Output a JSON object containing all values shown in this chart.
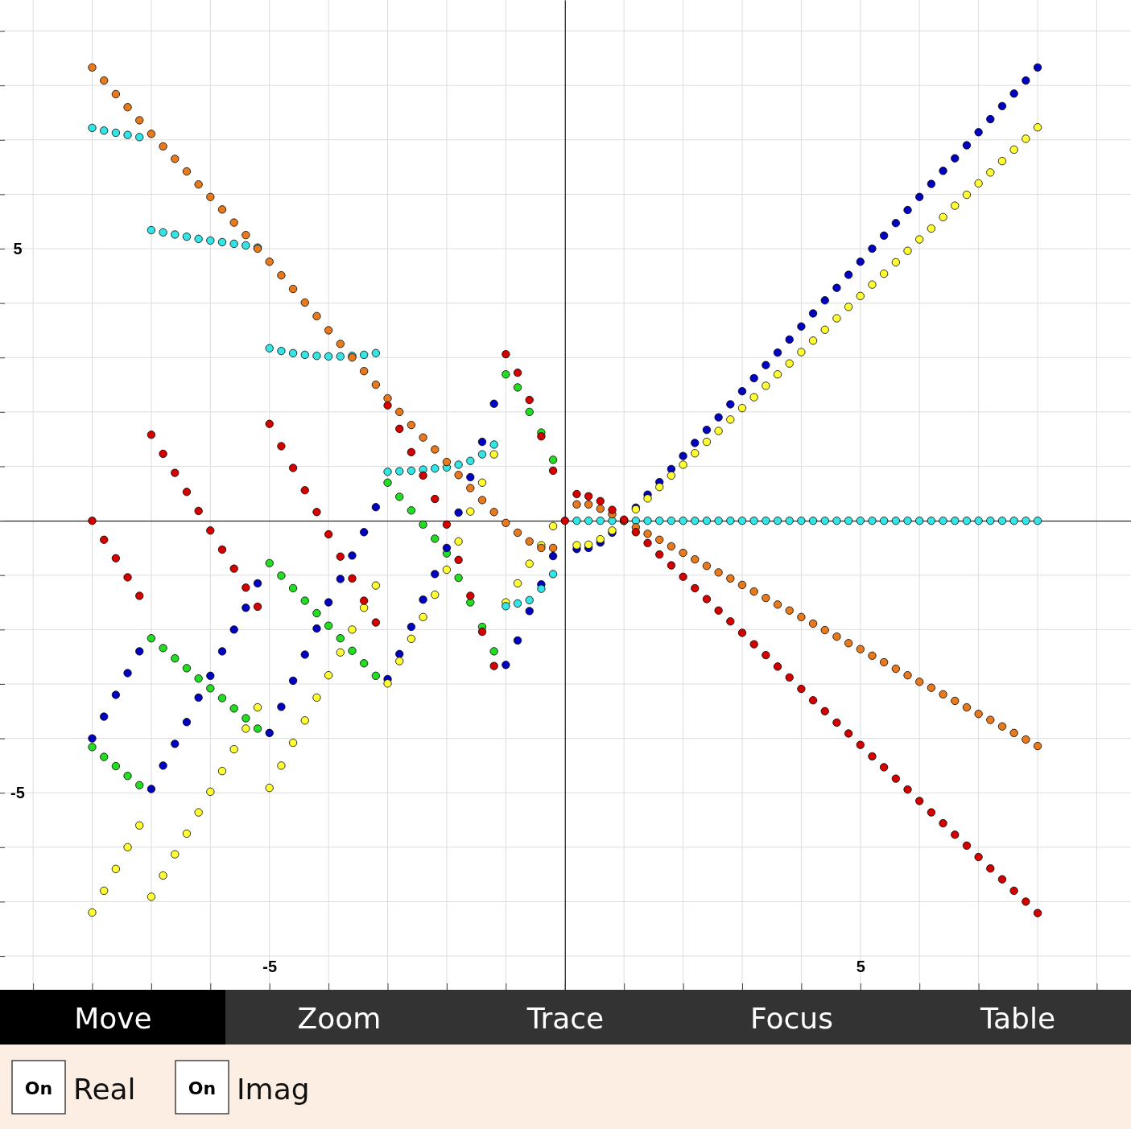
{
  "chart_data": {
    "type": "scatter",
    "marker": "circle",
    "grid": true,
    "xlim": [
      -9.56,
      9.58
    ],
    "ylim": [
      -8.62,
      9.57
    ],
    "xticks": [
      {
        "value": -9,
        "label": null
      },
      {
        "value": -8,
        "label": null
      },
      {
        "value": -7,
        "label": null
      },
      {
        "value": -6,
        "label": null
      },
      {
        "value": -5,
        "label": "-5"
      },
      {
        "value": -4,
        "label": null
      },
      {
        "value": -3,
        "label": null
      },
      {
        "value": -2,
        "label": null
      },
      {
        "value": -1,
        "label": null
      },
      {
        "value": 0,
        "label": null
      },
      {
        "value": 1,
        "label": null
      },
      {
        "value": 2,
        "label": null
      },
      {
        "value": 3,
        "label": null
      },
      {
        "value": 4,
        "label": null
      },
      {
        "value": 5,
        "label": "5"
      },
      {
        "value": 6,
        "label": null
      },
      {
        "value": 7,
        "label": null
      },
      {
        "value": 8,
        "label": null
      },
      {
        "value": 9,
        "label": null
      }
    ],
    "yticks": [
      {
        "value": -8,
        "label": null
      },
      {
        "value": -7,
        "label": null
      },
      {
        "value": -6,
        "label": null
      },
      {
        "value": -5,
        "label": "-5"
      },
      {
        "value": -4,
        "label": null
      },
      {
        "value": -3,
        "label": null
      },
      {
        "value": -2,
        "label": null
      },
      {
        "value": -1,
        "label": null
      },
      {
        "value": 0,
        "label": null
      },
      {
        "value": 1,
        "label": null
      },
      {
        "value": 2,
        "label": null
      },
      {
        "value": 3,
        "label": null
      },
      {
        "value": 4,
        "label": null
      },
      {
        "value": 5,
        "label": "5"
      },
      {
        "value": 6,
        "label": null
      },
      {
        "value": 7,
        "label": null
      },
      {
        "value": 8,
        "label": null
      },
      {
        "value": 9,
        "label": null
      }
    ],
    "x": [
      -8,
      -7.8,
      -7.6,
      -7.4,
      -7.2,
      -7,
      -6.8,
      -6.6,
      -6.4,
      -6.2,
      -6,
      -5.8,
      -5.6,
      -5.4,
      -5.2,
      -5,
      -4.8,
      -4.6,
      -4.4,
      -4.2,
      -4,
      -3.8,
      -3.6,
      -3.4,
      -3.2,
      -3,
      -2.8,
      -2.6,
      -2.4,
      -2.2,
      -2,
      -1.8,
      -1.6,
      -1.4,
      -1.2,
      -1,
      -0.8,
      -0.6,
      -0.4,
      -0.2,
      0,
      0.2,
      0.4,
      0.6,
      0.8,
      1,
      1.2,
      1.4,
      1.6,
      1.8,
      2,
      2.2,
      2.4,
      2.6,
      2.8,
      3,
      3.2,
      3.4,
      3.6,
      3.8,
      4,
      4.2,
      4.4,
      4.6,
      4.8,
      5,
      5.2,
      5.4,
      5.6,
      5.8,
      6,
      6.2,
      6.4,
      6.6,
      6.8,
      7,
      7.2,
      7.4,
      7.6,
      7.8,
      8
    ],
    "series": [
      {
        "color": "#22dd22",
        "values": [
          -4.16,
          -4.34,
          -4.51,
          -4.69,
          -4.86,
          -2.16,
          -2.34,
          -2.53,
          -2.71,
          -2.9,
          -3.08,
          -3.26,
          -3.45,
          -3.63,
          -3.82,
          -0.78,
          -1.01,
          -1.24,
          -1.47,
          -1.7,
          -1.93,
          -2.16,
          -2.39,
          -2.62,
          -2.85,
          0.7,
          0.44,
          0.19,
          -0.07,
          -0.33,
          -0.6,
          -1.05,
          -1.5,
          -1.95,
          -2.4,
          2.69,
          2.45,
          2.0,
          1.62,
          1.12,
          null,
          null,
          null,
          null,
          null,
          null,
          null,
          null,
          null,
          null,
          null,
          null,
          null,
          null,
          null,
          null,
          null,
          null,
          null,
          null,
          null,
          null,
          null,
          null,
          null,
          null,
          null,
          null,
          null,
          null,
          null,
          null,
          null,
          null,
          null,
          null,
          null,
          null,
          null,
          null,
          null
        ]
      },
      {
        "color": "#0000c0",
        "values": [
          -4.0,
          -3.6,
          -3.2,
          -2.8,
          -2.4,
          -4.93,
          -4.5,
          -4.1,
          -3.7,
          -3.25,
          -2.85,
          -2.4,
          -2.0,
          -1.6,
          -1.15,
          -3.9,
          -3.42,
          -2.94,
          -2.46,
          -1.98,
          -1.5,
          -1.07,
          -0.64,
          -0.21,
          0.25,
          -2.91,
          -2.45,
          -1.95,
          -1.45,
          -0.98,
          -0.5,
          0.15,
          0.8,
          1.45,
          2.15,
          -2.65,
          -2.2,
          -1.66,
          -1.17,
          -0.65,
          null,
          -0.52,
          -0.5,
          -0.4,
          -0.22,
          0,
          0.24,
          0.48,
          0.71,
          0.95,
          1.19,
          1.43,
          1.67,
          1.9,
          2.14,
          2.38,
          2.62,
          2.86,
          3.09,
          3.33,
          3.57,
          3.81,
          4.05,
          4.28,
          4.52,
          4.76,
          5.0,
          5.24,
          5.47,
          5.71,
          5.95,
          6.19,
          6.43,
          6.66,
          6.9,
          7.14,
          7.38,
          7.62,
          7.85,
          8.09,
          8.33
        ]
      },
      {
        "color": "#ffff33",
        "values": [
          -7.2,
          -6.8,
          -6.4,
          -6.0,
          -5.6,
          -6.91,
          -6.52,
          -6.13,
          -5.75,
          -5.36,
          -4.98,
          -4.6,
          -4.2,
          -3.82,
          -3.43,
          -4.91,
          -4.5,
          -4.08,
          -3.67,
          -3.25,
          -2.84,
          -2.42,
          -2.0,
          -1.6,
          -1.19,
          -2.99,
          -2.58,
          -2.17,
          -1.77,
          -1.36,
          -0.9,
          -0.38,
          0.17,
          0.7,
          1.22,
          -1.5,
          -1.15,
          -0.79,
          -0.45,
          -0.1,
          null,
          -0.45,
          -0.44,
          -0.34,
          -0.18,
          0,
          0.21,
          0.41,
          0.62,
          0.83,
          1.03,
          1.24,
          1.45,
          1.65,
          1.86,
          2.07,
          2.27,
          2.48,
          2.69,
          2.89,
          3.1,
          3.31,
          3.51,
          3.72,
          3.93,
          4.13,
          4.34,
          4.54,
          4.75,
          4.96,
          5.17,
          5.37,
          5.58,
          5.79,
          5.99,
          6.2,
          6.4,
          6.61,
          6.82,
          7.02,
          7.23
        ]
      },
      {
        "color": "#33e5e5",
        "values": [
          7.22,
          7.17,
          7.13,
          7.09,
          7.05,
          5.34,
          5.3,
          5.26,
          5.22,
          5.18,
          5.15,
          5.12,
          5.09,
          5.06,
          5.02,
          3.17,
          3.12,
          3.08,
          3.05,
          3.03,
          3.02,
          3.02,
          3.03,
          3.05,
          3.08,
          0.9,
          0.91,
          0.92,
          0.94,
          0.96,
          0.98,
          1.03,
          1.1,
          1.22,
          1.4,
          -1.57,
          -1.52,
          -1.46,
          -1.25,
          -0.98,
          null,
          0,
          0,
          0,
          0,
          0,
          0,
          0,
          0,
          0,
          0,
          0,
          0,
          0,
          0,
          0,
          0,
          0,
          0,
          0,
          0,
          0,
          0,
          0,
          0,
          0,
          0,
          0,
          0,
          0,
          0,
          0,
          0,
          0,
          0,
          0,
          0,
          0,
          0,
          0,
          0
        ]
      },
      {
        "color": "#e87a1e",
        "values": [
          8.33,
          8.09,
          7.84,
          7.6,
          7.36,
          7.11,
          6.88,
          6.65,
          6.42,
          6.18,
          5.95,
          5.72,
          5.48,
          5.25,
          5.0,
          4.76,
          4.51,
          4.26,
          4.01,
          3.76,
          3.5,
          3.25,
          3.0,
          2.75,
          2.5,
          2.25,
          2.0,
          1.76,
          1.53,
          1.31,
          1.08,
          0.84,
          0.6,
          0.38,
          0.16,
          -0.04,
          -0.22,
          -0.38,
          -0.5,
          -0.5,
          null,
          0.3,
          0.3,
          0.22,
          0.12,
          0,
          -0.12,
          -0.24,
          -0.35,
          -0.47,
          -0.59,
          -0.71,
          -0.83,
          -0.95,
          -1.06,
          -1.18,
          -1.3,
          -1.42,
          -1.54,
          -1.65,
          -1.77,
          -1.89,
          -2.01,
          -2.13,
          -2.25,
          -2.36,
          -2.48,
          -2.6,
          -2.72,
          -2.84,
          -2.96,
          -3.07,
          -3.19,
          -3.31,
          -3.43,
          -3.55,
          -3.66,
          -3.78,
          -3.9,
          -4.02,
          -4.14
        ]
      },
      {
        "color": "#d40000",
        "values": [
          0,
          -0.35,
          -0.69,
          -1.04,
          -1.38,
          1.58,
          1.23,
          0.88,
          0.53,
          0.18,
          -0.18,
          -0.53,
          -0.88,
          -1.23,
          -1.58,
          1.78,
          1.37,
          0.97,
          0.56,
          0.16,
          -0.25,
          -0.66,
          -1.06,
          -1.47,
          -1.87,
          2.12,
          1.69,
          1.26,
          0.83,
          0.4,
          -0.07,
          -0.72,
          -1.38,
          -2.04,
          -2.67,
          3.06,
          2.72,
          2.22,
          1.55,
          0.92,
          0,
          0.49,
          0.45,
          0.36,
          0.2,
          0.02,
          -0.21,
          -0.41,
          -0.62,
          -0.82,
          -1.03,
          -1.24,
          -1.44,
          -1.65,
          -1.85,
          -2.06,
          -2.27,
          -2.47,
          -2.68,
          -2.88,
          -3.09,
          -3.3,
          -3.5,
          -3.71,
          -3.91,
          -4.12,
          -4.33,
          -4.53,
          -4.74,
          -4.94,
          -5.15,
          -5.36,
          -5.56,
          -5.77,
          -5.97,
          -6.18,
          -6.39,
          -6.59,
          -6.8,
          -7.0,
          -7.21
        ]
      }
    ],
    "annotations": [
      "Move",
      "Zoom",
      "Trace",
      "Focus",
      "Table",
      "On",
      "Real",
      "On",
      "Imag"
    ]
  }
}
